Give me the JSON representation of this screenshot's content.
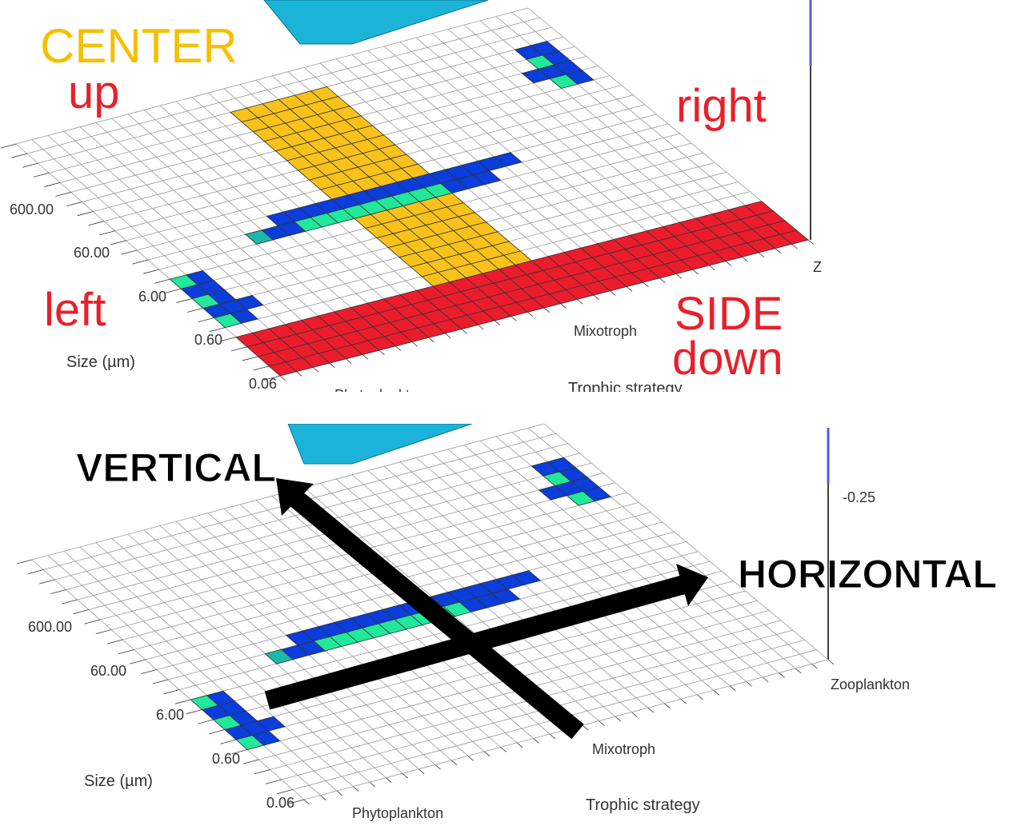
{
  "top_panel": {
    "annotations": {
      "center": "CENTER",
      "up": "up",
      "right": "right",
      "left": "left",
      "side": "SIDE",
      "down": "down"
    },
    "size_ticks": [
      "600.00",
      "60.00",
      "6.00",
      "0.60",
      "0.06"
    ],
    "size_label": "Size (µm)",
    "strategy_ticks": [
      "Phytoplankton",
      "Mixotroph"
    ],
    "strategy_label": "Trophic strategy",
    "z_label": "Z"
  },
  "bottom_panel": {
    "annotations": {
      "vertical": "VERTICAL",
      "horizontal": "HORIZONTAL"
    },
    "z_tick": "-0.25",
    "size_ticks": [
      "600.00",
      "60.00",
      "6.00",
      "0.60",
      "0.06"
    ],
    "size_label": "Size (µm)",
    "strategy_ticks": [
      "Phytoplankton",
      "Mixotroph",
      "Zooplankton"
    ],
    "strategy_label": "Trophic strategy"
  }
}
